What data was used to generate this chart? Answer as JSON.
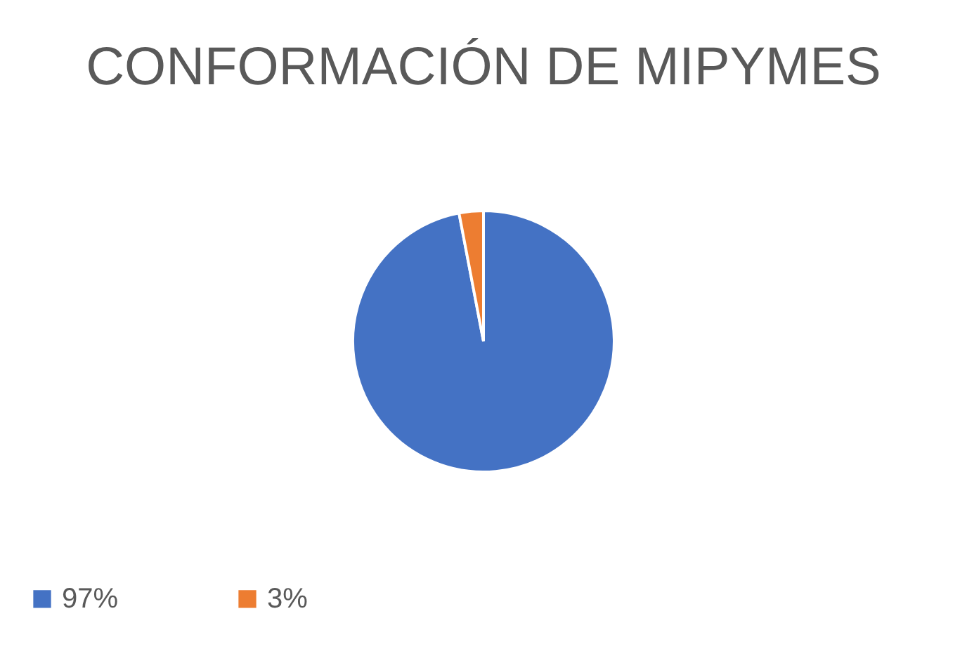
{
  "chart_data": {
    "type": "pie",
    "title": "CONFORMACIÓN DE MIPYMES",
    "categories": [
      "97%",
      "3%"
    ],
    "values": [
      97,
      3
    ],
    "colors": [
      "#4472c4",
      "#ed7d31"
    ],
    "legend": "bottom"
  }
}
